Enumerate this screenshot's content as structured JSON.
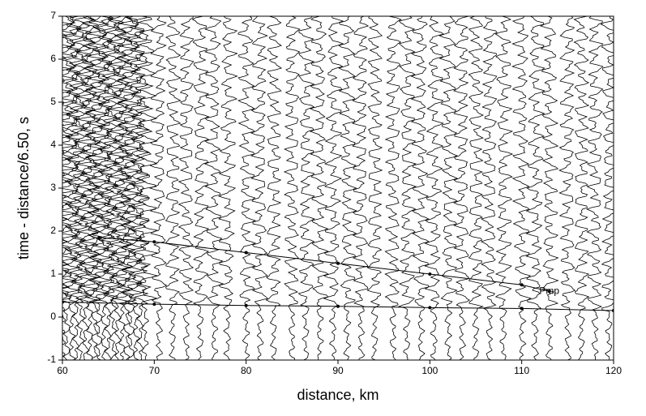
{
  "chart_data": {
    "type": "record-section",
    "xlabel": "distance, km",
    "ylabel": "time - distance/6.50, s",
    "xlim": [
      60,
      120
    ],
    "ylim": [
      -1,
      7
    ],
    "xticks": [
      60,
      70,
      80,
      90,
      100,
      110,
      120
    ],
    "yticks": [
      -1,
      0,
      1,
      2,
      3,
      4,
      5,
      6,
      7
    ],
    "traces_x": [
      60,
      60.5,
      61,
      61.5,
      62,
      62.5,
      63,
      63.5,
      64,
      64.5,
      65,
      65.5,
      66,
      66.5,
      67,
      67.5,
      68,
      68.5,
      69,
      70.5,
      72,
      73.5,
      75,
      76.5,
      78,
      80,
      81.5,
      83,
      85,
      86.5,
      88,
      89.5,
      91,
      92.5,
      94,
      96,
      97.5,
      99,
      100.5,
      102,
      103.5,
      105,
      106.5,
      108,
      110,
      111.5,
      113,
      115,
      116.5,
      118,
      119.5
    ],
    "trace_color": "#000000",
    "series": [
      {
        "color": "#000000",
        "x": [
          60,
          70,
          80,
          90,
          100,
          110,
          120
        ],
        "values": [
          0.35,
          0.3,
          0.27,
          0.25,
          0.22,
          0.2,
          0.15
        ]
      },
      {
        "color": "#000000",
        "x": [
          64,
          70,
          80,
          90,
          100,
          110,
          113
        ],
        "values": [
          1.85,
          1.75,
          1.5,
          1.25,
          1.0,
          0.75,
          0.6
        ]
      }
    ],
    "annotations": [
      {
        "text": "Pmp",
        "x": 113,
        "y": 0.6
      }
    ]
  }
}
